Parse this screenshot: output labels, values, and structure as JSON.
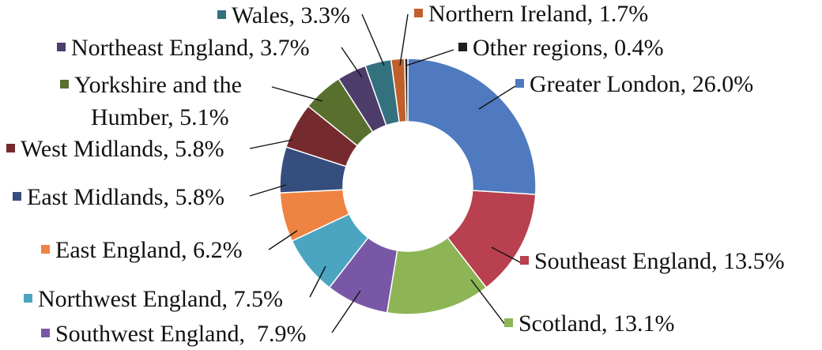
{
  "chart_data": {
    "type": "pie",
    "variant": "donut",
    "title": "",
    "slices": [
      {
        "label": "Greater London",
        "value": 26.0,
        "text": "Greater London, 26.0%",
        "color": "#4f7abf"
      },
      {
        "label": "Southeast England",
        "value": 13.5,
        "text": "Southeast England, 13.5%",
        "color": "#b8404f"
      },
      {
        "label": "Scotland",
        "value": 13.1,
        "text": "Scotland, 13.1%",
        "color": "#8db556"
      },
      {
        "label": "Southwest England",
        "value": 7.9,
        "text": "Southwest England,  7.9%",
        "color": "#7858a6"
      },
      {
        "label": "Northwest England",
        "value": 7.5,
        "text": "Northwest England, 7.5%",
        "color": "#4ba5c0"
      },
      {
        "label": "East England",
        "value": 6.2,
        "text": "East England, 6.2%",
        "color": "#ef8341"
      },
      {
        "label": "East Midlands",
        "value": 5.8,
        "text": "East Midlands, 5.8%",
        "color": "#354e7e"
      },
      {
        "label": "West Midlands",
        "value": 5.8,
        "text": "West Midlands, 5.8%",
        "color": "#752b2e"
      },
      {
        "label": "Yorkshire and the Humber",
        "value": 5.1,
        "text_lines": [
          "Yorkshire and the",
          "Humber, 5.1%"
        ],
        "color": "#586f2e"
      },
      {
        "label": "Northeast England",
        "value": 3.7,
        "text": "Northeast England, 3.7%",
        "color": "#4d3d6a"
      },
      {
        "label": "Wales",
        "value": 3.3,
        "text": "Wales, 3.3%",
        "color": "#33717f"
      },
      {
        "label": "Northern Ireland",
        "value": 1.7,
        "text": "Northern Ireland, 1.7%",
        "color": "#c15f2a"
      },
      {
        "label": "Other regions",
        "value": 0.4,
        "text": "Other regions, 0.4%",
        "color": "#1f1f1f"
      }
    ],
    "legend": "callout labels with colored squares"
  }
}
